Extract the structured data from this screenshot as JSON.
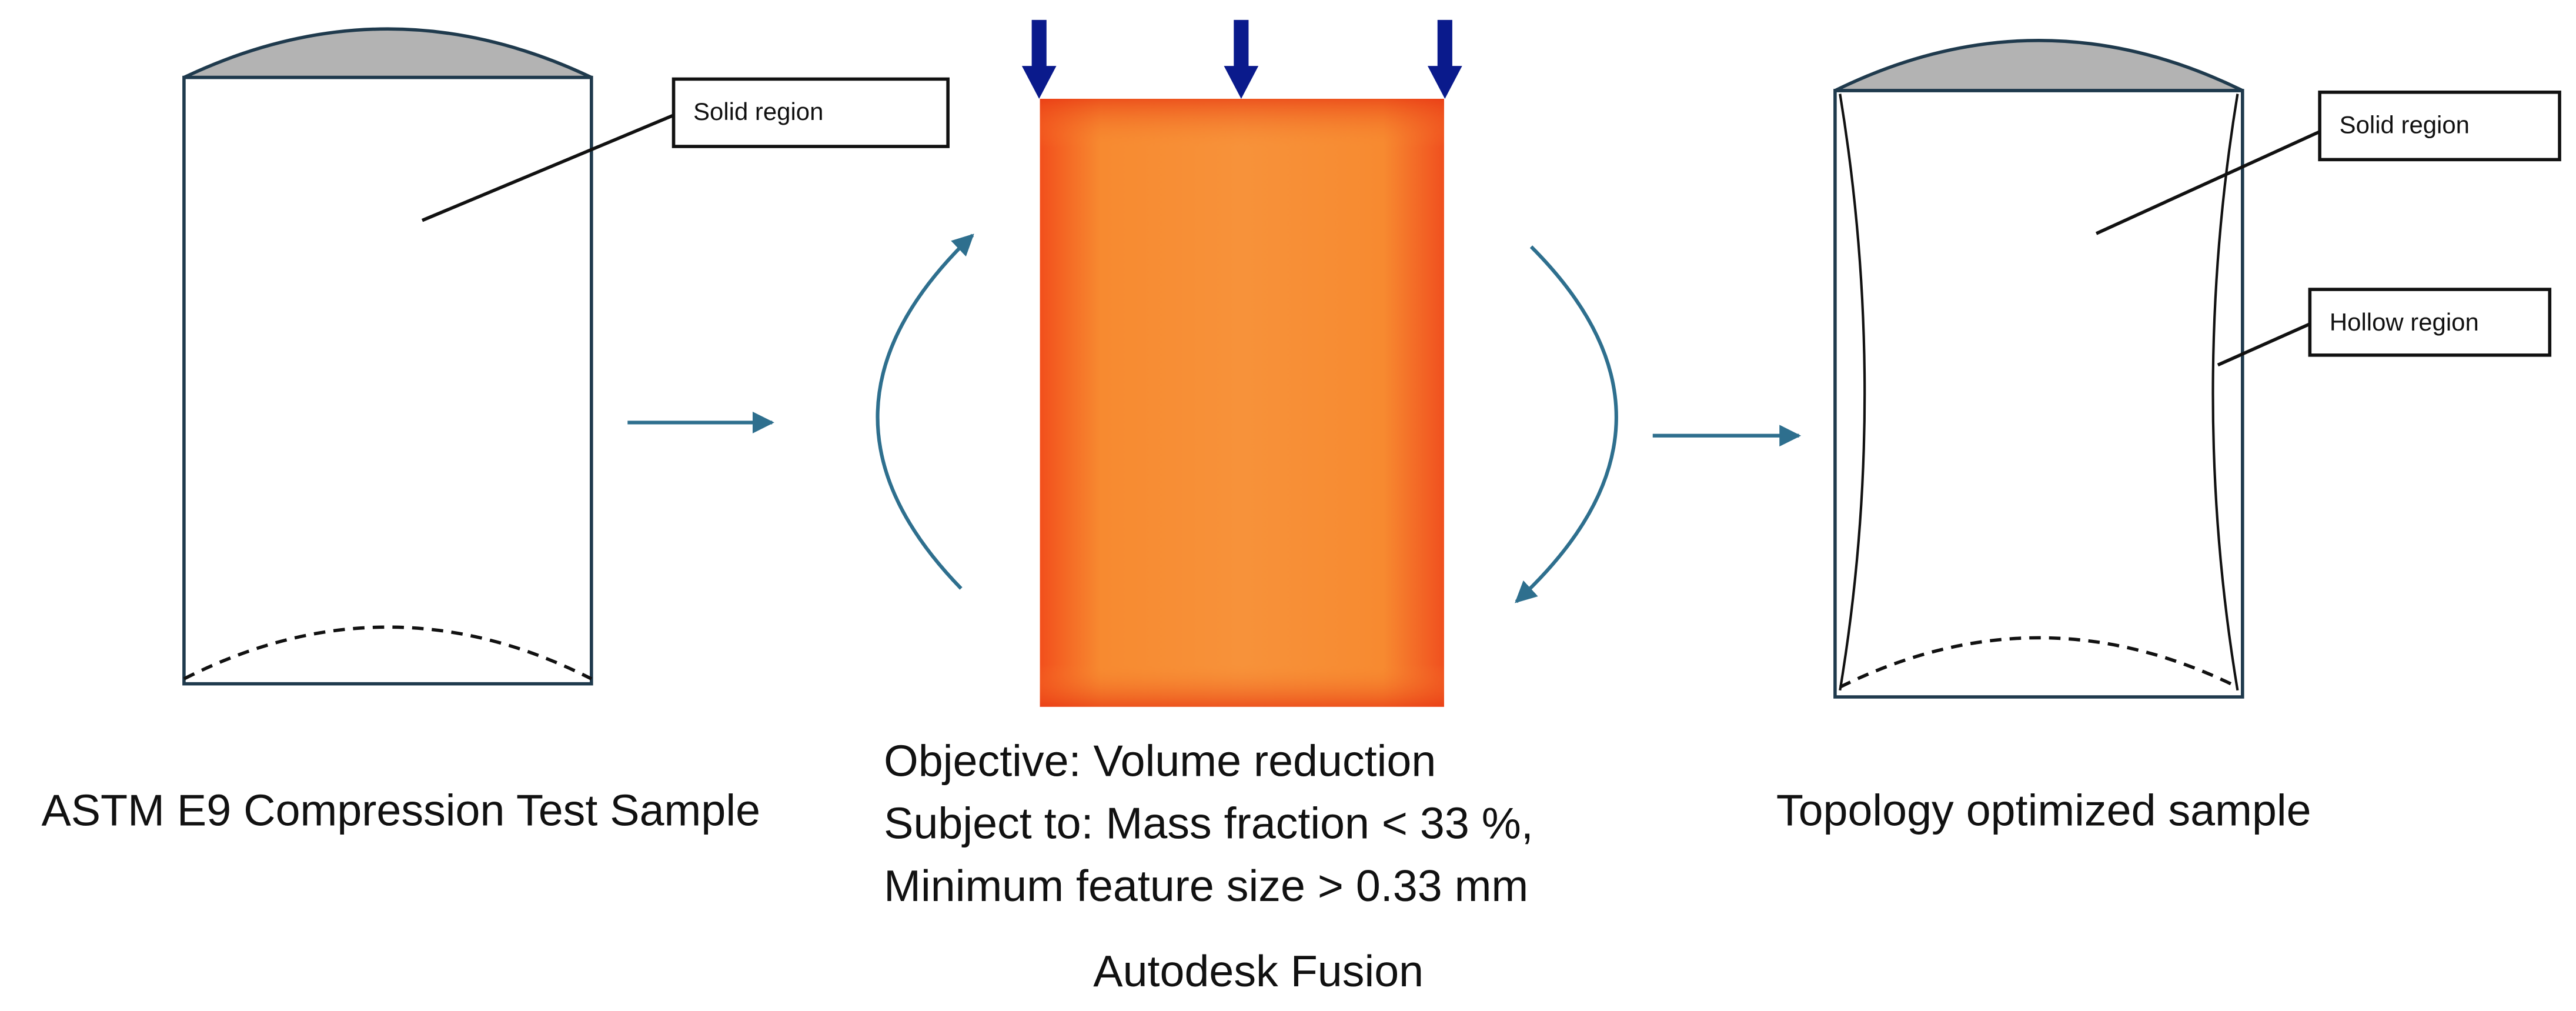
{
  "left": {
    "callout": "Solid region",
    "caption": "ASTM E9 Compression Test Sample"
  },
  "center": {
    "lines": [
      "Objective: Volume reduction",
      "Subject to: Mass fraction < 33 %,",
      "Minimum feature size > 0.33 mm"
    ],
    "caption": "Autodesk Fusion"
  },
  "right": {
    "callouts": [
      "Solid region",
      "Hollow region"
    ],
    "caption": "Topology optimized sample"
  }
}
